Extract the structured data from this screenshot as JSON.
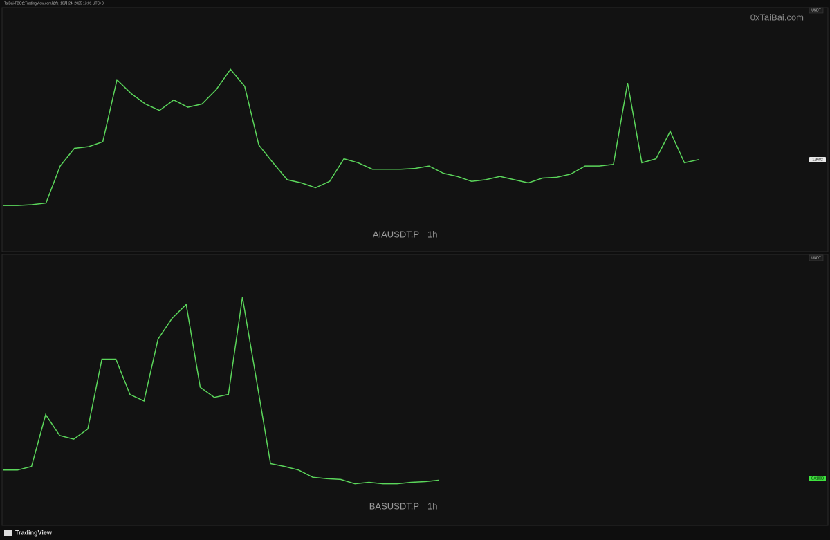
{
  "header": {
    "caption": "TaiBai-TBC在TradingView.com发布, 10月 24, 2025 13:01 UTC+8"
  },
  "watermark": "0xTaiBai.com",
  "footer": {
    "logo": "TradingView"
  },
  "chart_data": [
    {
      "type": "line",
      "symbol": "AIAUSDT.P",
      "interval": "1h",
      "currency": "USDT",
      "color": "#5bd65b",
      "last_price": 1.3682,
      "last_price_color": "#e8e8e8",
      "ylim": [
        0.26,
        3.18
      ],
      "values": [
        0.8,
        0.8,
        0.81,
        0.83,
        1.29,
        1.51,
        1.53,
        1.59,
        2.36,
        2.19,
        2.06,
        1.98,
        2.11,
        2.02,
        2.06,
        2.24,
        2.49,
        2.28,
        1.55,
        1.33,
        1.12,
        1.08,
        1.02,
        1.1,
        1.38,
        1.33,
        1.25,
        1.25,
        1.25,
        1.26,
        1.29,
        1.2,
        1.16,
        1.1,
        1.12,
        1.16,
        1.12,
        1.08,
        1.14,
        1.15,
        1.19,
        1.29,
        1.29,
        1.31,
        2.32,
        1.33,
        1.38,
        1.72,
        1.33,
        1.37
      ]
    },
    {
      "type": "line",
      "symbol": "BASUSDT.P",
      "interval": "1h",
      "currency": "USDT",
      "color": "#5bd65b",
      "last_price": 0.01003,
      "last_price_color": "#3ee23e",
      "ylim": [
        0.0035,
        0.04
      ],
      "values": [
        0.0112,
        0.0112,
        0.0117,
        0.0189,
        0.016,
        0.0155,
        0.0169,
        0.0266,
        0.0266,
        0.0217,
        0.0208,
        0.0294,
        0.0323,
        0.0342,
        0.0227,
        0.0213,
        0.0217,
        0.0352,
        0.0237,
        0.0121,
        0.0117,
        0.0112,
        0.0102,
        0.01,
        0.0099,
        0.0093,
        0.0095,
        0.0093,
        0.0093,
        0.0095,
        0.0096,
        0.0098
      ]
    }
  ]
}
